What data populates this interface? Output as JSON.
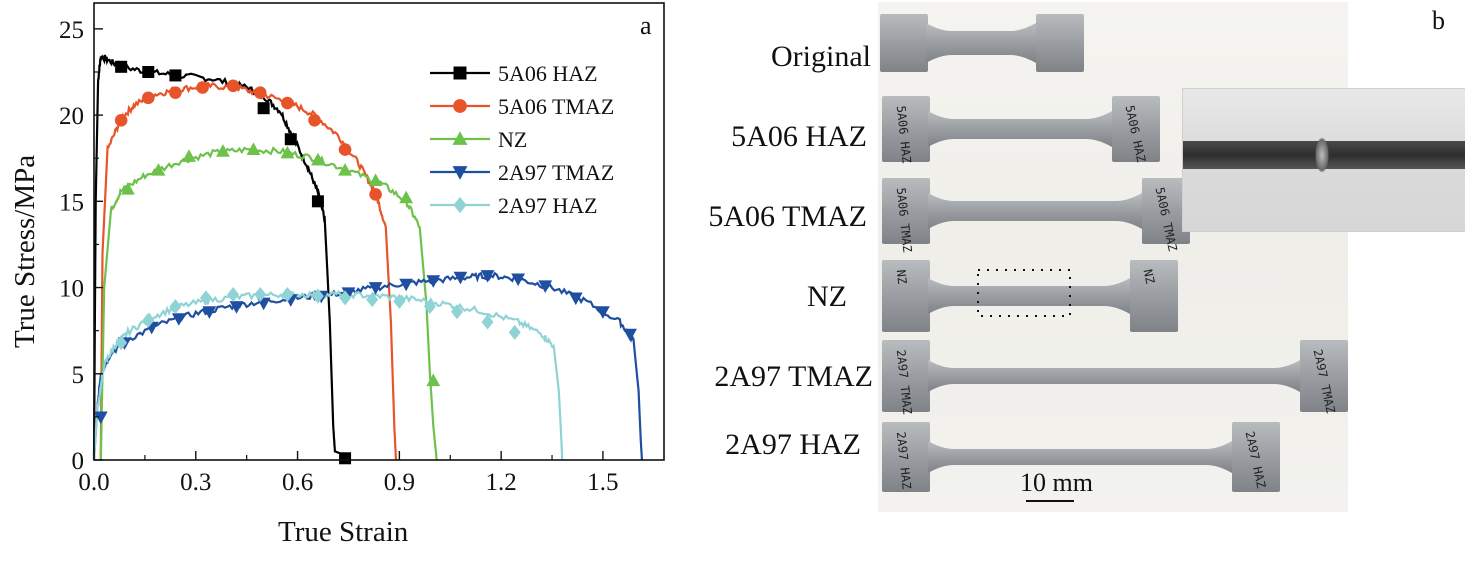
{
  "chart_data": {
    "type": "line",
    "panel_label": "a",
    "xlabel": "True Strain",
    "ylabel": "True Stress/MPa",
    "xlim": [
      0,
      1.68
    ],
    "ylim": [
      0,
      26.5
    ],
    "xticks": [
      0.0,
      0.3,
      0.6,
      0.9,
      1.2,
      1.5
    ],
    "xtick_labels": [
      "0.0",
      "0.3",
      "0.6",
      "0.9",
      "1.2",
      "1.5"
    ],
    "yticks": [
      0,
      5,
      10,
      15,
      20,
      25
    ],
    "ytick_labels": [
      "0",
      "5",
      "10",
      "15",
      "20",
      "25"
    ],
    "grid": false,
    "legend_position": "top-right",
    "series": [
      {
        "name": "5A06 HAZ",
        "color": "#000000",
        "marker": "square",
        "points": [
          [
            0.0,
            0
          ],
          [
            0.005,
            15
          ],
          [
            0.012,
            22
          ],
          [
            0.02,
            23.4
          ],
          [
            0.04,
            23.2
          ],
          [
            0.08,
            22.8
          ],
          [
            0.16,
            22.5
          ],
          [
            0.25,
            22.3
          ],
          [
            0.35,
            22.1
          ],
          [
            0.45,
            21.6
          ],
          [
            0.5,
            21.1
          ],
          [
            0.55,
            20.2
          ],
          [
            0.59,
            18.6
          ],
          [
            0.63,
            17.0
          ],
          [
            0.66,
            15.5
          ],
          [
            0.68,
            14.0
          ],
          [
            0.695,
            8
          ],
          [
            0.705,
            2
          ],
          [
            0.71,
            0.5
          ],
          [
            0.75,
            0.2
          ]
        ],
        "markers": [
          [
            0.08,
            22.8
          ],
          [
            0.16,
            22.5
          ],
          [
            0.24,
            22.3
          ],
          [
            0.5,
            20.4
          ],
          [
            0.58,
            18.6
          ],
          [
            0.66,
            15.0
          ],
          [
            0.74,
            0.1
          ]
        ]
      },
      {
        "name": "5A06 TMAZ",
        "color": "#e8542a",
        "marker": "circle",
        "points": [
          [
            0.02,
            0
          ],
          [
            0.025,
            12
          ],
          [
            0.04,
            18
          ],
          [
            0.08,
            19.8
          ],
          [
            0.12,
            20.6
          ],
          [
            0.18,
            21.2
          ],
          [
            0.25,
            21.5
          ],
          [
            0.33,
            21.7
          ],
          [
            0.42,
            21.6
          ],
          [
            0.5,
            21.2
          ],
          [
            0.58,
            20.7
          ],
          [
            0.65,
            20.0
          ],
          [
            0.72,
            18.8
          ],
          [
            0.78,
            17.2
          ],
          [
            0.83,
            15.5
          ],
          [
            0.86,
            13.5
          ],
          [
            0.875,
            8
          ],
          [
            0.885,
            2
          ],
          [
            0.89,
            0
          ]
        ],
        "markers": [
          [
            0.08,
            19.7
          ],
          [
            0.16,
            21.0
          ],
          [
            0.24,
            21.3
          ],
          [
            0.32,
            21.6
          ],
          [
            0.41,
            21.7
          ],
          [
            0.49,
            21.3
          ],
          [
            0.57,
            20.7
          ],
          [
            0.65,
            19.7
          ],
          [
            0.74,
            18.0
          ],
          [
            0.83,
            15.4
          ]
        ]
      },
      {
        "name": "NZ",
        "color": "#6cc24a",
        "marker": "triangle-up",
        "points": [
          [
            0.02,
            0
          ],
          [
            0.03,
            10
          ],
          [
            0.05,
            14.5
          ],
          [
            0.08,
            15.6
          ],
          [
            0.15,
            16.5
          ],
          [
            0.25,
            17.3
          ],
          [
            0.35,
            17.8
          ],
          [
            0.45,
            18.0
          ],
          [
            0.55,
            17.9
          ],
          [
            0.65,
            17.5
          ],
          [
            0.75,
            16.8
          ],
          [
            0.85,
            16.0
          ],
          [
            0.92,
            15.0
          ],
          [
            0.96,
            13.5
          ],
          [
            0.98,
            9
          ],
          [
            0.99,
            5
          ],
          [
            1.0,
            2
          ],
          [
            1.01,
            0
          ]
        ],
        "markers": [
          [
            0.1,
            15.7
          ],
          [
            0.19,
            16.8
          ],
          [
            0.28,
            17.6
          ],
          [
            0.38,
            17.9
          ],
          [
            0.47,
            18.0
          ],
          [
            0.57,
            17.8
          ],
          [
            0.66,
            17.4
          ],
          [
            0.74,
            16.8
          ],
          [
            0.83,
            16.2
          ],
          [
            0.92,
            15.2
          ],
          [
            1.0,
            4.6
          ]
        ]
      },
      {
        "name": "2A97 TMAZ",
        "color": "#1f4fa0",
        "marker": "triangle-down",
        "points": [
          [
            0.0,
            0
          ],
          [
            0.01,
            3
          ],
          [
            0.02,
            5.0
          ],
          [
            0.05,
            6.2
          ],
          [
            0.1,
            7.0
          ],
          [
            0.2,
            7.9
          ],
          [
            0.3,
            8.5
          ],
          [
            0.4,
            8.9
          ],
          [
            0.5,
            9.2
          ],
          [
            0.6,
            9.4
          ],
          [
            0.7,
            9.6
          ],
          [
            0.8,
            9.9
          ],
          [
            0.9,
            10.2
          ],
          [
            1.0,
            10.4
          ],
          [
            1.1,
            10.6
          ],
          [
            1.17,
            10.7
          ],
          [
            1.25,
            10.5
          ],
          [
            1.35,
            10.0
          ],
          [
            1.45,
            9.2
          ],
          [
            1.55,
            8.0
          ],
          [
            1.59,
            7.0
          ],
          [
            1.605,
            4
          ],
          [
            1.612,
            1
          ],
          [
            1.615,
            0
          ]
        ],
        "markers": [
          [
            0.02,
            2.5
          ],
          [
            0.09,
            6.8
          ],
          [
            0.17,
            7.7
          ],
          [
            0.25,
            8.2
          ],
          [
            0.34,
            8.6
          ],
          [
            0.42,
            8.9
          ],
          [
            0.5,
            9.1
          ],
          [
            0.58,
            9.3
          ],
          [
            0.67,
            9.5
          ],
          [
            0.75,
            9.7
          ],
          [
            0.83,
            10.0
          ],
          [
            0.92,
            10.2
          ],
          [
            1.0,
            10.4
          ],
          [
            1.08,
            10.6
          ],
          [
            1.16,
            10.7
          ],
          [
            1.25,
            10.5
          ],
          [
            1.33,
            10.1
          ],
          [
            1.42,
            9.4
          ],
          [
            1.5,
            8.6
          ],
          [
            1.58,
            7.3
          ]
        ]
      },
      {
        "name": "2A97 HAZ",
        "color": "#8fd3d6",
        "marker": "diamond",
        "points": [
          [
            0.0,
            0
          ],
          [
            0.01,
            3
          ],
          [
            0.03,
            5.5
          ],
          [
            0.06,
            6.6
          ],
          [
            0.1,
            7.4
          ],
          [
            0.17,
            8.3
          ],
          [
            0.25,
            8.9
          ],
          [
            0.35,
            9.3
          ],
          [
            0.45,
            9.5
          ],
          [
            0.55,
            9.6
          ],
          [
            0.65,
            9.6
          ],
          [
            0.75,
            9.6
          ],
          [
            0.85,
            9.5
          ],
          [
            0.95,
            9.3
          ],
          [
            1.05,
            9.0
          ],
          [
            1.15,
            8.6
          ],
          [
            1.25,
            8.0
          ],
          [
            1.32,
            7.3
          ],
          [
            1.355,
            6.6
          ],
          [
            1.37,
            4
          ],
          [
            1.378,
            1
          ],
          [
            1.38,
            0
          ]
        ],
        "markers": [
          [
            0.08,
            6.8
          ],
          [
            0.16,
            8.1
          ],
          [
            0.24,
            8.9
          ],
          [
            0.33,
            9.4
          ],
          [
            0.41,
            9.6
          ],
          [
            0.49,
            9.6
          ],
          [
            0.57,
            9.6
          ],
          [
            0.66,
            9.5
          ],
          [
            0.74,
            9.4
          ],
          [
            0.82,
            9.3
          ],
          [
            0.9,
            9.2
          ],
          [
            0.99,
            8.9
          ],
          [
            1.07,
            8.6
          ],
          [
            1.16,
            8.0
          ],
          [
            1.24,
            7.4
          ]
        ]
      }
    ]
  },
  "photo_panel": {
    "panel_label": "b",
    "samples": [
      "Original",
      "5A06 HAZ",
      "5A06 TMAZ",
      "NZ",
      "2A97 TMAZ",
      "2A97 HAZ"
    ],
    "specimen_markings": [
      "5A06 HAZ",
      "5A06 TMAZ",
      "NZ",
      "2A97 TMAZ",
      "2A97 HAZ"
    ],
    "scale_bar": "10 mm"
  }
}
